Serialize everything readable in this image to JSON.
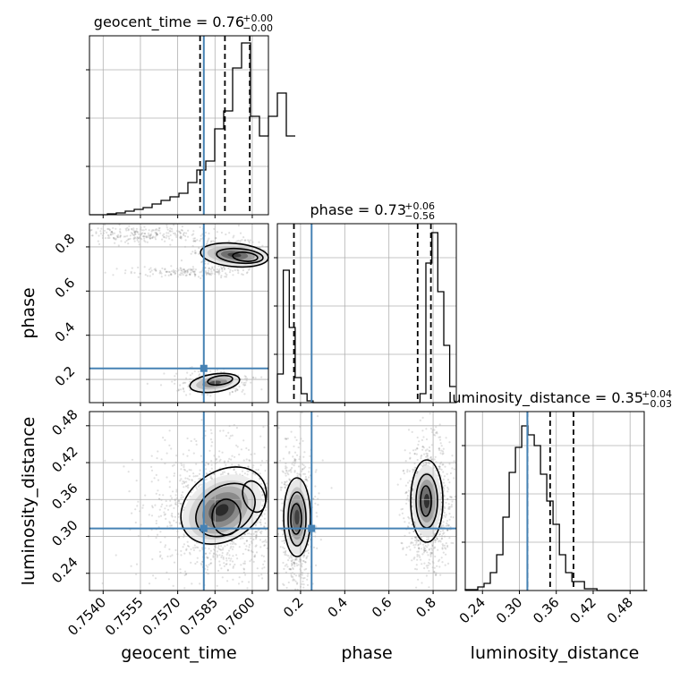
{
  "chart_data": {
    "type": "corner",
    "parameters": [
      "geocent_time",
      "phase",
      "luminosity_distance"
    ],
    "axis_labels": {
      "geocent_time": "geocent_time",
      "phase": "phase",
      "luminosity_distance": "luminosity_distance"
    },
    "ranges": {
      "geocent_time": [
        0.75345,
        0.76065
      ],
      "phase": [
        0.095,
        0.905
      ],
      "luminosity_distance": [
        0.212,
        0.503
      ]
    },
    "ticks": {
      "geocent_time": [
        "0.7540",
        "0.7555",
        "0.7570",
        "0.7585",
        "0.7600"
      ],
      "phase": [
        "0.2",
        "0.4",
        "0.6",
        "0.8"
      ],
      "luminosity_distance": [
        "0.24",
        "0.30",
        "0.36",
        "0.42",
        "0.48"
      ]
    },
    "truths": {
      "geocent_time": 0.75805,
      "phase": 0.25,
      "luminosity_distance": 0.313
    },
    "titles": [
      {
        "param": "geocent_time",
        "text": "geocent_time = 0.76",
        "plus": "+0.00",
        "minus": "−0.00"
      },
      {
        "param": "phase",
        "text": "phase = 0.73",
        "plus": "+0.06",
        "minus": "−0.56"
      },
      {
        "param": "luminosity_distance",
        "text": "luminosity_distance = 0.35",
        "plus": "+0.04",
        "minus": "−0.03"
      }
    ],
    "quantiles": {
      "geocent_time": [
        0.7579,
        0.7589,
        0.7599
      ],
      "phase": [
        0.17,
        0.73,
        0.79
      ],
      "luminosity_distance": [
        0.313,
        0.35,
        0.388
      ]
    },
    "histograms": {
      "geocent_time": {
        "edges_start": 0.75345,
        "bin_width": 0.00036,
        "counts": [
          0.0,
          0.0,
          0.005,
          0.01,
          0.02,
          0.03,
          0.04,
          0.06,
          0.08,
          0.1,
          0.12,
          0.18,
          0.25,
          0.3,
          0.48,
          0.58,
          0.82,
          0.96,
          0.55,
          0.44,
          0.55,
          0.68,
          0.44
        ]
      },
      "phase": {
        "edges_start": 0.095,
        "bin_width": 0.0269,
        "counts": [
          0.16,
          0.74,
          0.42,
          0.14,
          0.05,
          0.01,
          0.0,
          0.0,
          0.0,
          0.0,
          0.0,
          0.0,
          0.0,
          0.0,
          0.0,
          0.0,
          0.0,
          0.0,
          0.0,
          0.0,
          0.0,
          0.0,
          0.0,
          0.0,
          0.05,
          0.78,
          0.95,
          0.62,
          0.32,
          0.09
        ]
      },
      "luminosity_distance": {
        "edges_start": 0.212,
        "bin_width": 0.0102,
        "counts": [
          0.005,
          0.005,
          0.02,
          0.04,
          0.1,
          0.2,
          0.41,
          0.66,
          0.8,
          0.92,
          0.87,
          0.81,
          0.65,
          0.5,
          0.37,
          0.2,
          0.1,
          0.05,
          0.05,
          0.01,
          0.01,
          0.0,
          0.0,
          0.0,
          0.0,
          0.0,
          0.0,
          0.0,
          0.0
        ]
      }
    },
    "grid": true
  }
}
